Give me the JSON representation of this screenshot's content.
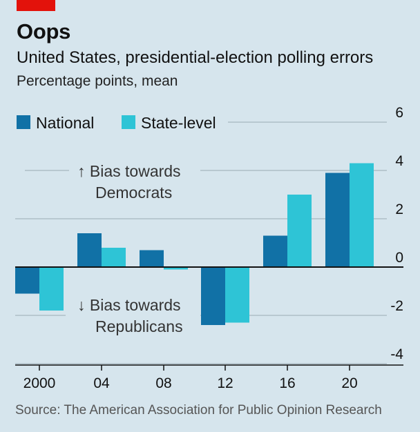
{
  "header": {
    "title": "Oops",
    "subtitle": "United States, presidential-election polling errors",
    "units": "Percentage points, mean"
  },
  "source": "Source: The American Association for Public Opinion Research",
  "annotations": {
    "dem_line1": "↑ Bias towards",
    "dem_line2": "Democrats",
    "rep_line1": "↓ Bias towards",
    "rep_line2": "Republicans"
  },
  "colors": {
    "national": "#1171a6",
    "state": "#2ec4d6",
    "brand": "#e3120b",
    "background": "#d6e5ed"
  },
  "chart_data": {
    "type": "bar",
    "categories": [
      "2000",
      "04",
      "08",
      "12",
      "16",
      "20"
    ],
    "series": [
      {
        "name": "National",
        "values": [
          -1.1,
          1.4,
          0.7,
          -2.4,
          1.3,
          3.9
        ]
      },
      {
        "name": "State-level",
        "values": [
          -1.8,
          0.8,
          -0.1,
          -2.3,
          3.0,
          4.3
        ]
      }
    ],
    "ylim": [
      -4,
      6
    ],
    "yticks": [
      "6",
      "4",
      "2",
      "0",
      "-2",
      "-4"
    ],
    "ytick_values": [
      6,
      4,
      2,
      0,
      -2,
      -4
    ],
    "y_axis_position": "right",
    "grid": true,
    "legend_position": "top-left"
  }
}
